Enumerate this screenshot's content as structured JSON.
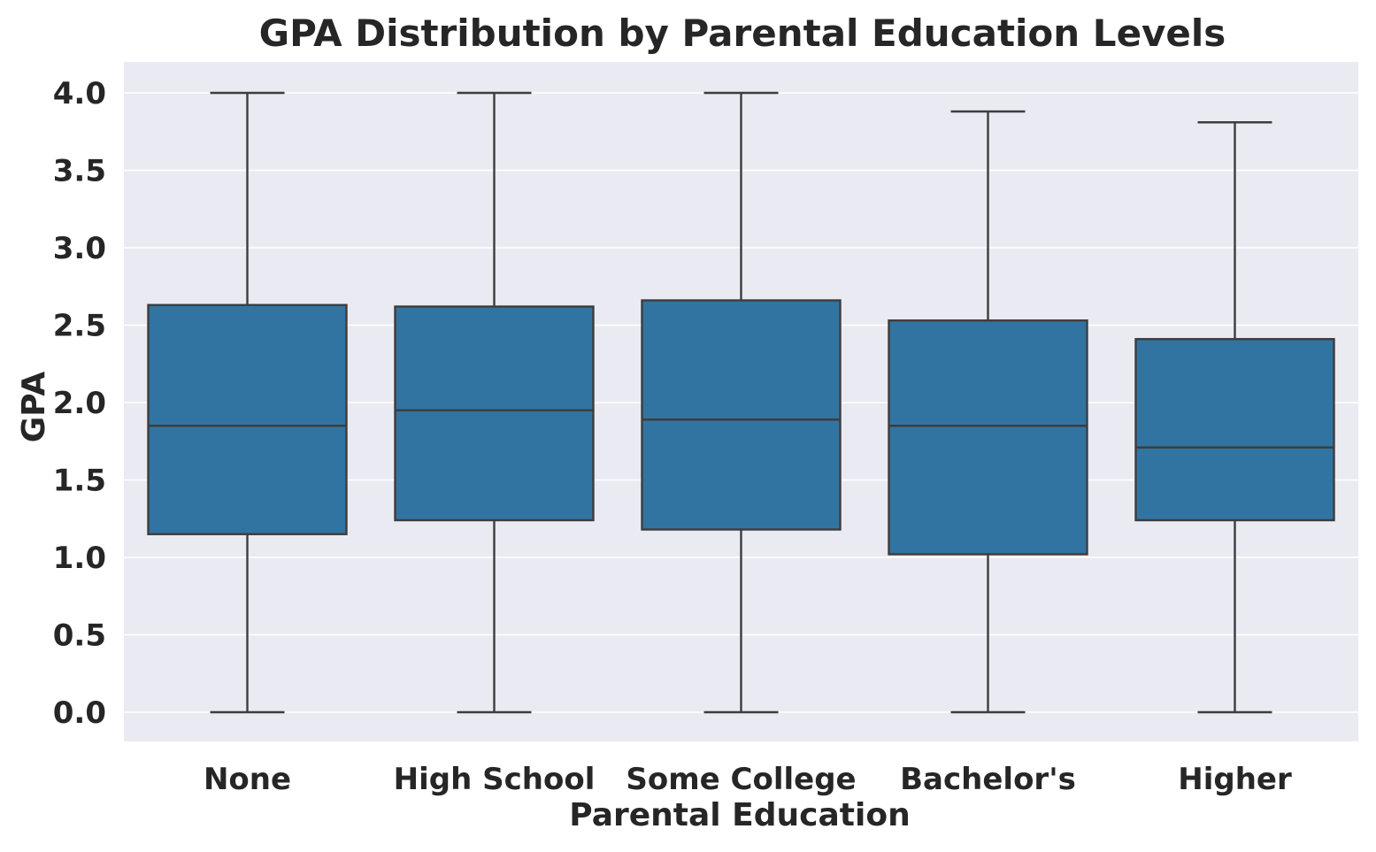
{
  "chart_data": {
    "type": "box",
    "title": "GPA Distribution by Parental Education Levels",
    "xlabel": "Parental Education",
    "ylabel": "GPA",
    "ylim": [
      0,
      4
    ],
    "yticks": [
      "0.0",
      "0.5",
      "1.0",
      "1.5",
      "2.0",
      "2.5",
      "3.0",
      "3.5",
      "4.0"
    ],
    "grid": true,
    "categories": [
      "None",
      "High School",
      "Some College",
      "Bachelor's",
      "Higher"
    ],
    "series": [
      {
        "min": 0.0,
        "q1": 1.15,
        "median": 1.85,
        "q3": 2.63,
        "max": 4.0
      },
      {
        "min": 0.0,
        "q1": 1.24,
        "median": 1.95,
        "q3": 2.62,
        "max": 4.0
      },
      {
        "min": 0.0,
        "q1": 1.18,
        "median": 1.89,
        "q3": 2.66,
        "max": 4.0
      },
      {
        "min": 0.0,
        "q1": 1.02,
        "median": 1.85,
        "q3": 2.53,
        "max": 3.88
      },
      {
        "min": 0.0,
        "q1": 1.24,
        "median": 1.71,
        "q3": 2.41,
        "max": 3.81
      }
    ],
    "colors": {
      "box": "#3274a1",
      "line": "#3d3d3d",
      "background": "#eaeaf2",
      "grid": "#ffffff"
    }
  }
}
